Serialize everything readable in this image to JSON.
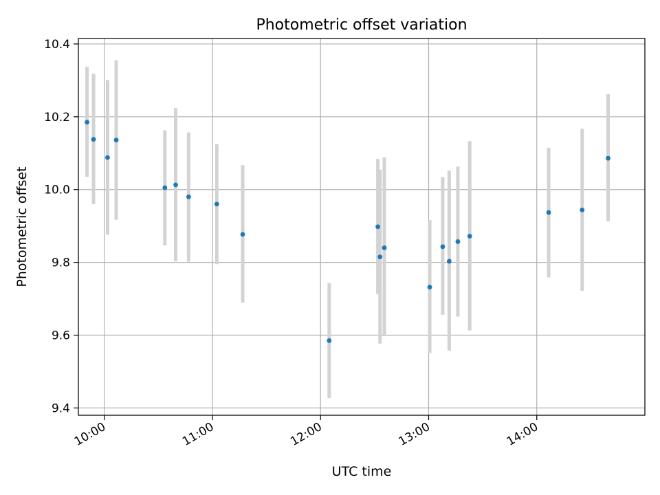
{
  "chart_data": {
    "type": "scatter",
    "title": "Photometric offset variation",
    "xlabel": "UTC time",
    "ylabel": "Photometric offset",
    "xlim": [
      9.76,
      15.0
    ],
    "ylim": [
      9.38,
      10.415
    ],
    "xticks": [
      {
        "value": 10,
        "label": "10:00"
      },
      {
        "value": 11,
        "label": "11:00"
      },
      {
        "value": 12,
        "label": "12:00"
      },
      {
        "value": 13,
        "label": "13:00"
      },
      {
        "value": 14,
        "label": "14:00"
      }
    ],
    "yticks": [
      {
        "value": 9.4,
        "label": "9.4"
      },
      {
        "value": 9.6,
        "label": "9.6"
      },
      {
        "value": 9.8,
        "label": "9.8"
      },
      {
        "value": 10.0,
        "label": "10.0"
      },
      {
        "value": 10.2,
        "label": "10.2"
      },
      {
        "value": 10.4,
        "label": "10.4"
      }
    ],
    "grid": true,
    "marker_color": "#1f77b4",
    "errorbar_color": "#d3d3d3",
    "points": [
      {
        "x": 9.84,
        "y": 10.185,
        "lo": 10.035,
        "hi": 10.337
      },
      {
        "x": 9.9,
        "y": 10.138,
        "lo": 9.96,
        "hi": 10.318
      },
      {
        "x": 10.03,
        "y": 10.088,
        "lo": 9.876,
        "hi": 10.301
      },
      {
        "x": 10.11,
        "y": 10.136,
        "lo": 9.917,
        "hi": 10.355
      },
      {
        "x": 10.56,
        "y": 10.005,
        "lo": 9.847,
        "hi": 10.163
      },
      {
        "x": 10.66,
        "y": 10.013,
        "lo": 9.803,
        "hi": 10.224
      },
      {
        "x": 10.78,
        "y": 9.98,
        "lo": 9.802,
        "hi": 10.157
      },
      {
        "x": 11.04,
        "y": 9.96,
        "lo": 9.795,
        "hi": 10.125
      },
      {
        "x": 11.28,
        "y": 9.877,
        "lo": 9.689,
        "hi": 10.067
      },
      {
        "x": 12.08,
        "y": 9.585,
        "lo": 9.427,
        "hi": 9.743
      },
      {
        "x": 12.53,
        "y": 9.898,
        "lo": 9.713,
        "hi": 10.084
      },
      {
        "x": 12.55,
        "y": 9.815,
        "lo": 9.577,
        "hi": 10.055
      },
      {
        "x": 12.59,
        "y": 9.84,
        "lo": 9.597,
        "hi": 10.088
      },
      {
        "x": 13.01,
        "y": 9.732,
        "lo": 9.551,
        "hi": 9.916
      },
      {
        "x": 13.13,
        "y": 9.843,
        "lo": 9.656,
        "hi": 10.034
      },
      {
        "x": 13.19,
        "y": 9.803,
        "lo": 9.557,
        "hi": 10.052
      },
      {
        "x": 13.27,
        "y": 9.857,
        "lo": 9.651,
        "hi": 10.063
      },
      {
        "x": 13.38,
        "y": 9.872,
        "lo": 9.613,
        "hi": 10.133
      },
      {
        "x": 14.11,
        "y": 9.937,
        "lo": 9.759,
        "hi": 10.115
      },
      {
        "x": 14.42,
        "y": 9.944,
        "lo": 9.722,
        "hi": 10.167
      },
      {
        "x": 14.66,
        "y": 10.086,
        "lo": 9.913,
        "hi": 10.262
      }
    ]
  }
}
